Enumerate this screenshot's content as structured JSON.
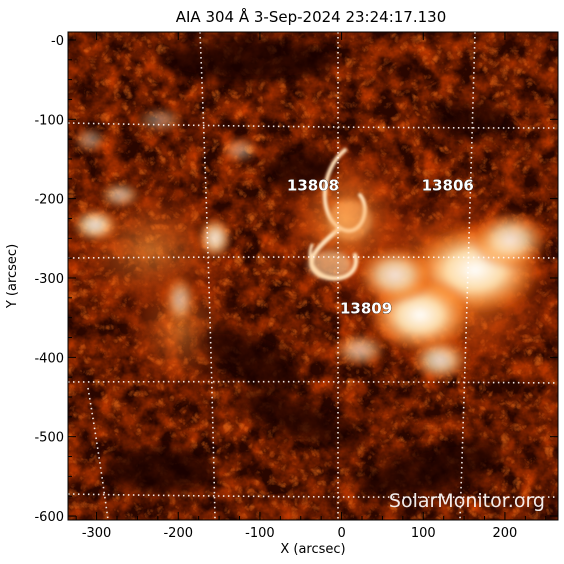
{
  "title": "AIA 304 Å   3-Sep-2024  23:24:17.130",
  "x_axis": {
    "label": "X (arcsec)",
    "ticks": [
      "-300",
      "-200",
      "-100",
      "0",
      "100",
      "200"
    ],
    "tick_values": [
      -300,
      -200,
      -100,
      0,
      100,
      200
    ],
    "range": [
      -335,
      265
    ]
  },
  "y_axis": {
    "label": "Y (arcsec)",
    "ticks": [
      "-0",
      "-100",
      "-200",
      "-300",
      "-400",
      "-500",
      "-600"
    ],
    "tick_values": [
      0,
      -100,
      -200,
      -300,
      -400,
      -500,
      -600
    ],
    "range": [
      -605,
      10
    ]
  },
  "active_regions": [
    {
      "label": "13808",
      "x": -35,
      "y": -190
    },
    {
      "label": "13806",
      "x": 130,
      "y": -190
    },
    {
      "label": "13809",
      "x": 30,
      "y": -345
    }
  ],
  "watermark": "SolarMonitor.org",
  "colors": {
    "sun_dark": "#1a0300",
    "sun_mid": "#b43000",
    "sun_bright": "#fff2d8",
    "grid": "#ffffff"
  }
}
